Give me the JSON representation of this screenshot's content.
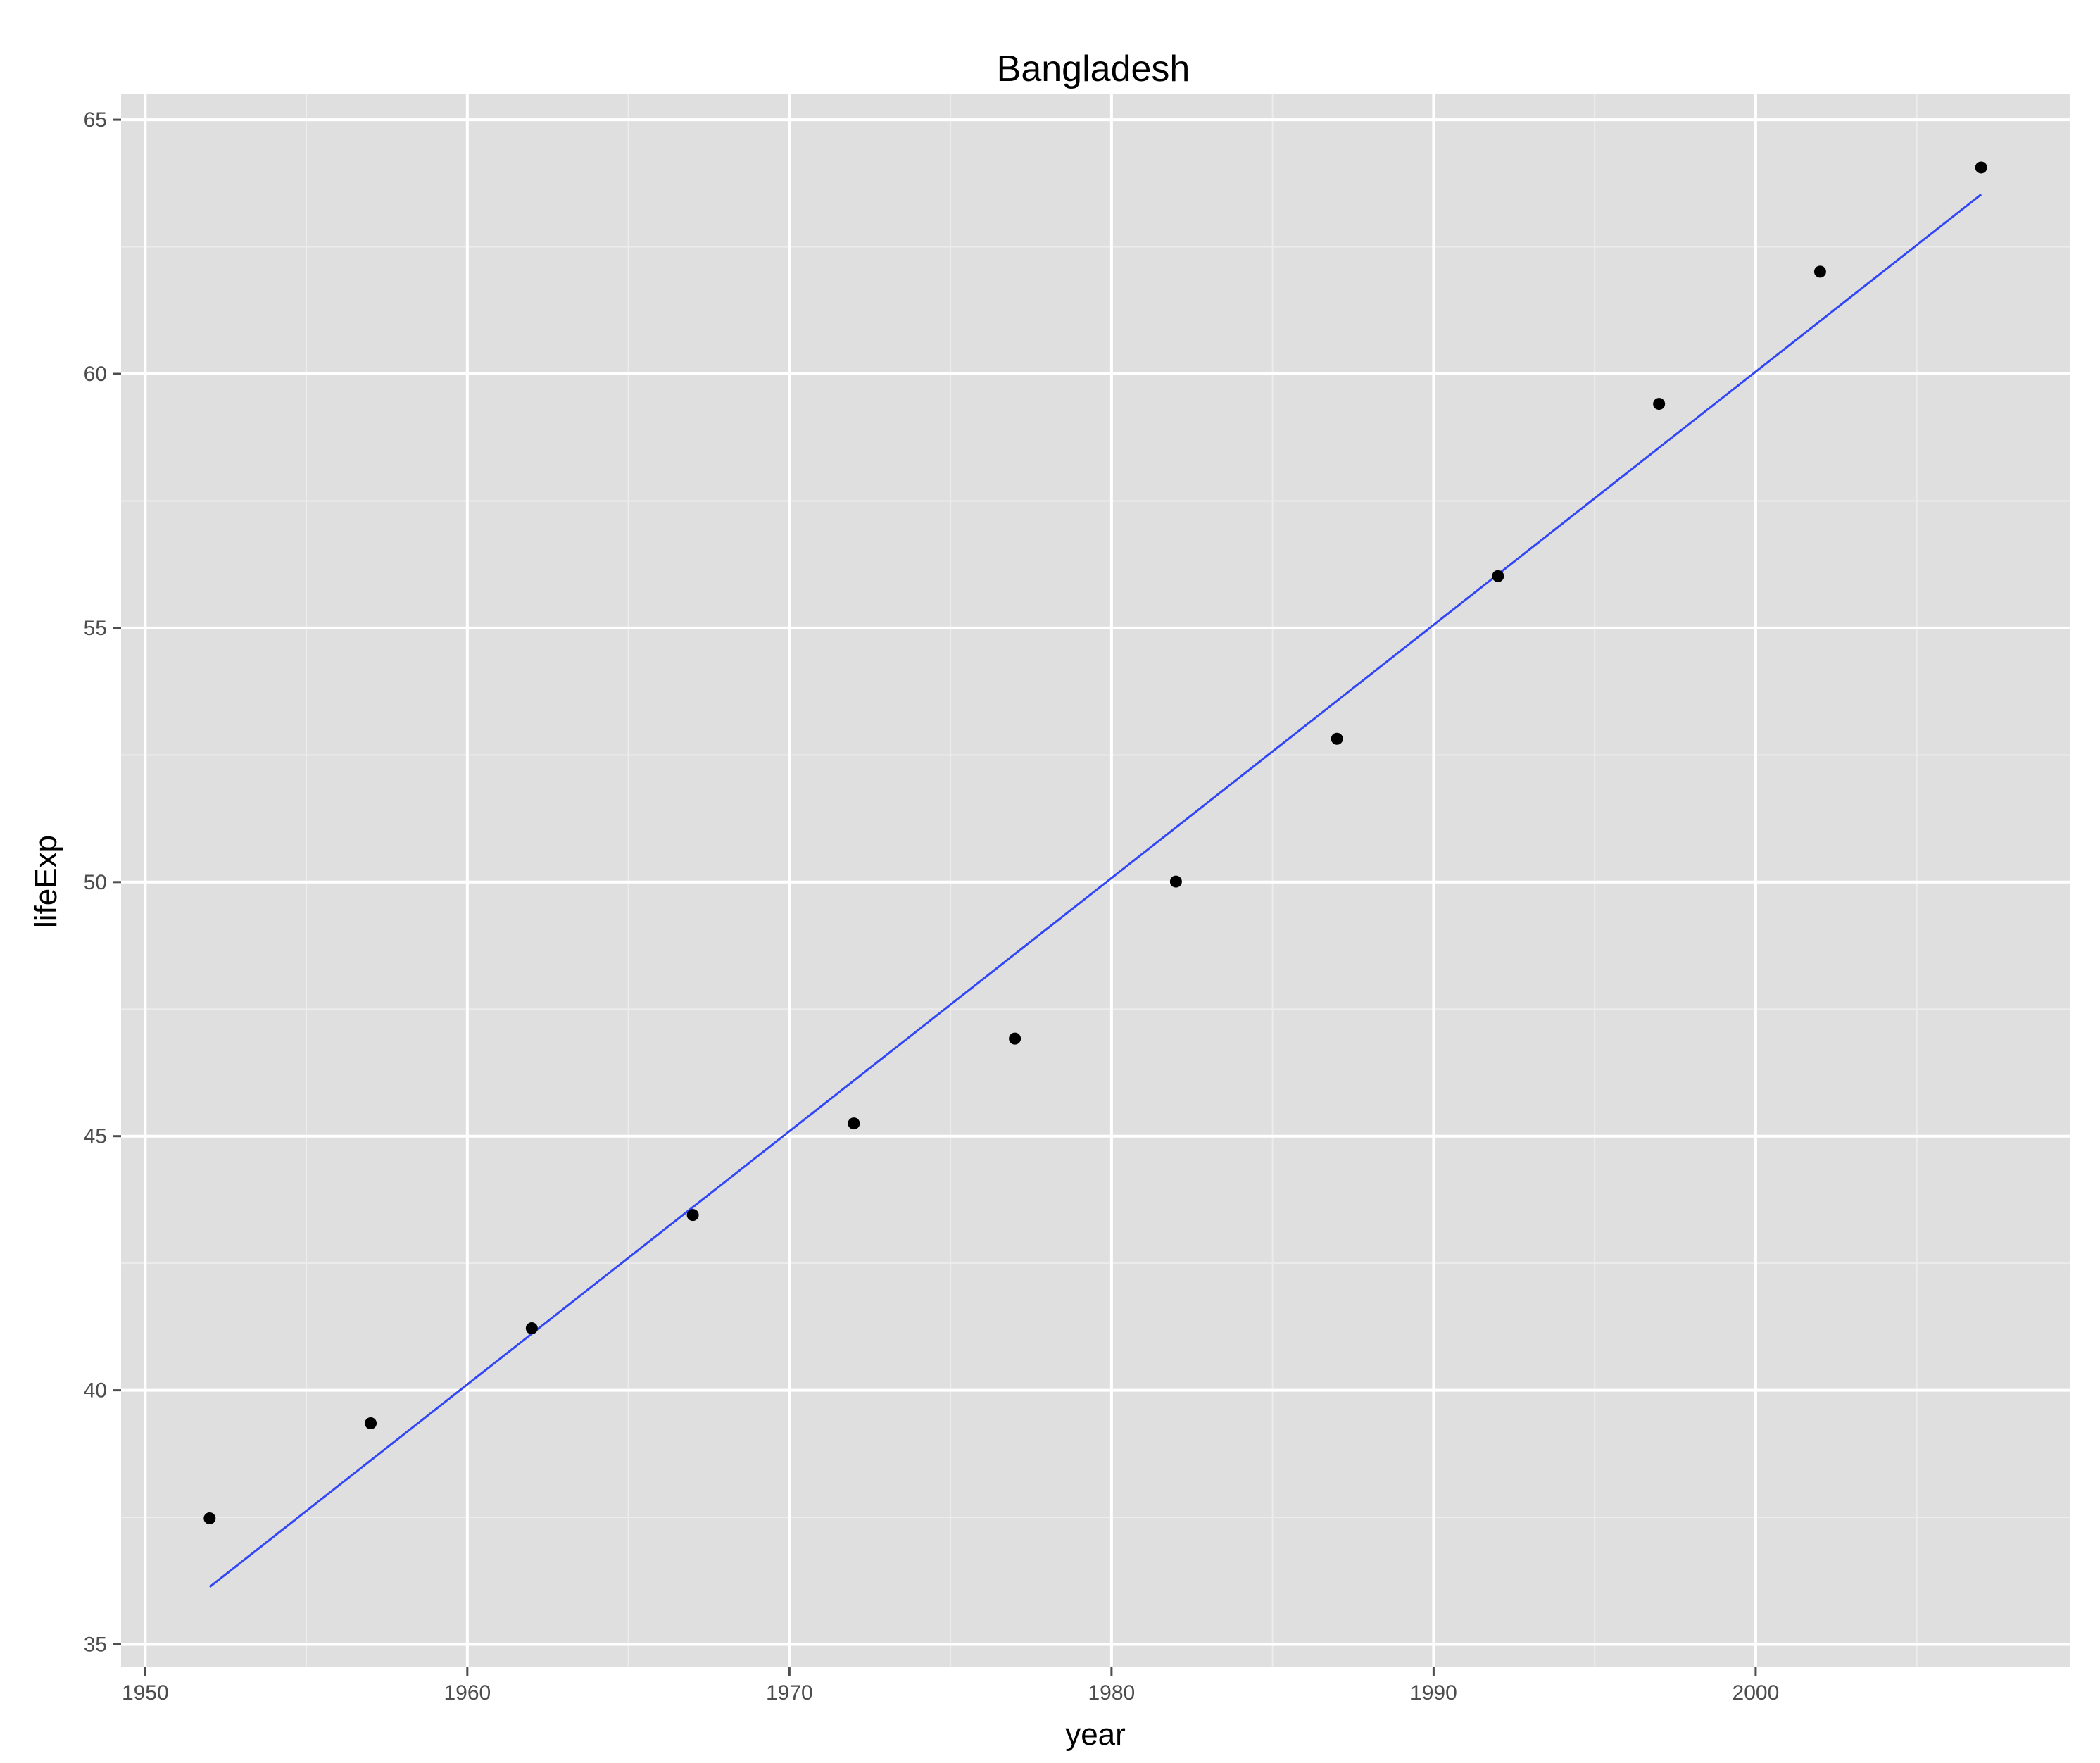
{
  "chart_data": {
    "type": "scatter",
    "title": "Bangladesh",
    "xlabel": "year",
    "ylabel": "lifeExp",
    "xlim": [
      1949.25,
      2009.75
    ],
    "ylim": [
      34.55,
      65.5
    ],
    "x_ticks": [
      1950,
      1960,
      1970,
      1980,
      1990,
      2000
    ],
    "y_ticks": [
      35,
      40,
      45,
      50,
      55,
      60,
      65
    ],
    "grid": true,
    "legend": "none",
    "series": [
      {
        "type": "scatter",
        "x": [
          1952,
          1957,
          1962,
          1967,
          1972,
          1977,
          1982,
          1987,
          1992,
          1997,
          2002,
          2007
        ],
        "y": [
          37.48,
          39.35,
          41.22,
          43.45,
          45.25,
          46.92,
          50.01,
          52.82,
          56.02,
          59.41,
          62.01,
          64.06
        ]
      },
      {
        "type": "line",
        "x": [
          1952,
          2007
        ],
        "y": [
          36.13,
          63.53
        ]
      }
    ],
    "colors": {
      "panel": "#dfdfdf",
      "grid_major": "#ffffff",
      "grid_minor": "#ececec",
      "points": "#000000",
      "fit_line": "#3146f5",
      "tick": "#4d4d4d"
    }
  }
}
